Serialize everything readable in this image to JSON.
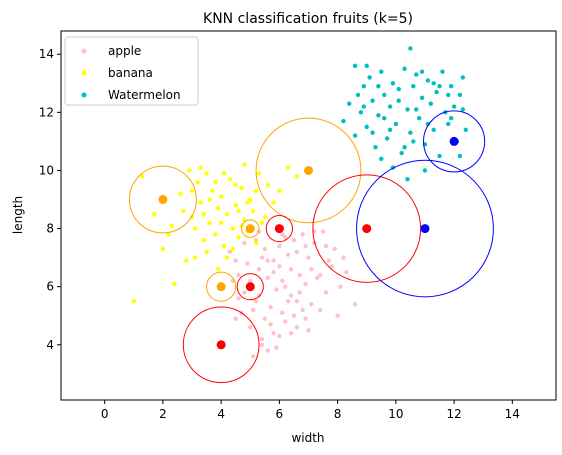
{
  "chart_data": {
    "type": "scatter",
    "title": "KNN classification fruits (k=5)",
    "xlabel": "width",
    "ylabel": "length",
    "xlim": [
      -1.5,
      15.5
    ],
    "ylim": [
      2.1,
      14.8
    ],
    "xticks": [
      0,
      2,
      4,
      6,
      8,
      10,
      12,
      14
    ],
    "yticks": [
      4,
      6,
      8,
      10,
      12,
      14
    ],
    "grid": false,
    "legend_position": "top-left",
    "series": [
      {
        "name": "apple",
        "color": "#ffc0cb",
        "points": [
          [
            4.3,
            7.2
          ],
          [
            4.6,
            6.4
          ],
          [
            4.8,
            5.8
          ],
          [
            5.0,
            6.2
          ],
          [
            5.2,
            7.6
          ],
          [
            5.4,
            7.0
          ],
          [
            5.6,
            6.3
          ],
          [
            5.8,
            6.9
          ],
          [
            6.0,
            7.4
          ],
          [
            6.2,
            7.7
          ],
          [
            6.4,
            6.6
          ],
          [
            6.6,
            7.2
          ],
          [
            6.8,
            7.8
          ],
          [
            7.0,
            7.0
          ],
          [
            7.2,
            7.5
          ],
          [
            7.4,
            6.4
          ],
          [
            7.5,
            7.9
          ],
          [
            7.7,
            6.9
          ],
          [
            7.9,
            7.3
          ],
          [
            8.1,
            6.0
          ],
          [
            5.1,
            5.2
          ],
          [
            5.3,
            5.7
          ],
          [
            5.5,
            4.9
          ],
          [
            5.7,
            5.3
          ],
          [
            5.9,
            5.9
          ],
          [
            6.1,
            6.2
          ],
          [
            6.3,
            5.5
          ],
          [
            6.5,
            5.0
          ],
          [
            6.7,
            5.8
          ],
          [
            6.9,
            6.1
          ],
          [
            7.1,
            5.4
          ],
          [
            7.3,
            6.3
          ],
          [
            6.2,
            4.8
          ],
          [
            6.6,
            4.6
          ],
          [
            5.8,
            4.4
          ],
          [
            5.6,
            3.8
          ],
          [
            5.4,
            4.2
          ],
          [
            4.5,
            4.9
          ],
          [
            4.7,
            5.1
          ],
          [
            6.0,
            4.3
          ],
          [
            4.5,
            6.9
          ],
          [
            4.8,
            7.5
          ],
          [
            5.3,
            6.6
          ],
          [
            5.6,
            6.9
          ],
          [
            6.1,
            5.1
          ],
          [
            6.4,
            5.7
          ],
          [
            6.8,
            5.2
          ],
          [
            7.6,
            5.8
          ],
          [
            7.8,
            6.7
          ],
          [
            8.3,
            6.5
          ],
          [
            8.6,
            5.4
          ],
          [
            8.0,
            5.0
          ],
          [
            6.3,
            7.1
          ],
          [
            6.9,
            4.9
          ],
          [
            5.1,
            3.6
          ],
          [
            5.9,
            3.9
          ],
          [
            7.0,
            4.5
          ],
          [
            4.9,
            6.8
          ],
          [
            5.5,
            7.3
          ],
          [
            6.0,
            6.7
          ],
          [
            6.5,
            7.6
          ],
          [
            7.1,
            6.6
          ],
          [
            7.4,
            5.2
          ],
          [
            6.7,
            6.4
          ],
          [
            5.2,
            5.5
          ],
          [
            4.6,
            5.6
          ],
          [
            5.8,
            6.5
          ],
          [
            6.2,
            6.0
          ],
          [
            6.6,
            5.5
          ],
          [
            7.2,
            7.9
          ],
          [
            5.0,
            4.6
          ],
          [
            5.4,
            4.0
          ],
          [
            6.4,
            4.4
          ],
          [
            5.7,
            4.7
          ],
          [
            6.1,
            7.8
          ],
          [
            5.3,
            7.9
          ],
          [
            7.6,
            7.4
          ],
          [
            8.2,
            7.0
          ],
          [
            4.4,
            6.2
          ],
          [
            6.9,
            7.4
          ]
        ]
      },
      {
        "name": "banana",
        "color": "#ffff00",
        "points": [
          [
            1.0,
            5.5
          ],
          [
            1.3,
            9.8
          ],
          [
            1.7,
            8.5
          ],
          [
            2.0,
            7.3
          ],
          [
            2.3,
            8.1
          ],
          [
            2.6,
            9.2
          ],
          [
            2.9,
            10.0
          ],
          [
            3.0,
            8.4
          ],
          [
            3.1,
            7.0
          ],
          [
            3.2,
            9.6
          ],
          [
            3.3,
            8.9
          ],
          [
            3.4,
            7.6
          ],
          [
            3.5,
            9.9
          ],
          [
            3.6,
            8.2
          ],
          [
            3.7,
            9.3
          ],
          [
            3.8,
            7.8
          ],
          [
            3.9,
            8.7
          ],
          [
            4.0,
            9.1
          ],
          [
            4.1,
            7.4
          ],
          [
            4.2,
            8.5
          ],
          [
            4.3,
            9.7
          ],
          [
            4.4,
            8.0
          ],
          [
            4.5,
            8.8
          ],
          [
            4.6,
            7.7
          ],
          [
            4.7,
            9.4
          ],
          [
            4.8,
            8.3
          ],
          [
            4.9,
            7.9
          ],
          [
            5.0,
            9.0
          ],
          [
            5.1,
            8.6
          ],
          [
            5.2,
            7.5
          ],
          [
            5.3,
            9.9
          ],
          [
            5.4,
            8.2
          ],
          [
            5.6,
            9.5
          ],
          [
            5.8,
            8.9
          ],
          [
            6.0,
            9.3
          ],
          [
            6.3,
            10.1
          ],
          [
            6.6,
            9.8
          ],
          [
            3.5,
            7.2
          ],
          [
            2.8,
            6.9
          ],
          [
            2.4,
            6.1
          ],
          [
            3.9,
            6.6
          ],
          [
            4.2,
            7.0
          ],
          [
            3.1,
            8.0
          ],
          [
            2.7,
            8.6
          ],
          [
            3.6,
            9.0
          ],
          [
            4.5,
            9.5
          ],
          [
            4.8,
            10.2
          ],
          [
            3.3,
            10.1
          ],
          [
            4.0,
            8.2
          ],
          [
            4.4,
            7.3
          ],
          [
            5.5,
            8.4
          ],
          [
            3.8,
            9.6
          ],
          [
            4.6,
            8.6
          ],
          [
            2.2,
            7.8
          ],
          [
            3.0,
            9.3
          ],
          [
            4.1,
            9.9
          ],
          [
            4.9,
            8.9
          ],
          [
            5.2,
            9.3
          ],
          [
            3.4,
            8.5
          ],
          [
            4.7,
            8.1
          ]
        ]
      },
      {
        "name": "Watermelon",
        "color": "#00bfbf",
        "points": [
          [
            8.2,
            11.7
          ],
          [
            8.4,
            12.3
          ],
          [
            8.6,
            11.2
          ],
          [
            8.6,
            13.6
          ],
          [
            8.8,
            12.0
          ],
          [
            8.9,
            12.9
          ],
          [
            9.0,
            11.5
          ],
          [
            9.1,
            13.2
          ],
          [
            9.2,
            12.4
          ],
          [
            9.3,
            10.8
          ],
          [
            9.4,
            11.9
          ],
          [
            9.5,
            13.4
          ],
          [
            9.6,
            12.6
          ],
          [
            9.7,
            11.1
          ],
          [
            9.8,
            12.2
          ],
          [
            9.9,
            13.0
          ],
          [
            10.0,
            11.6
          ],
          [
            10.1,
            12.8
          ],
          [
            10.2,
            10.6
          ],
          [
            10.3,
            13.5
          ],
          [
            10.4,
            12.1
          ],
          [
            10.5,
            11.3
          ],
          [
            10.6,
            12.9
          ],
          [
            10.7,
            13.3
          ],
          [
            10.8,
            11.8
          ],
          [
            10.9,
            12.5
          ],
          [
            11.0,
            10.9
          ],
          [
            11.1,
            13.1
          ],
          [
            11.2,
            12.3
          ],
          [
            11.3,
            11.4
          ],
          [
            11.4,
            12.7
          ],
          [
            11.5,
            10.5
          ],
          [
            11.6,
            13.4
          ],
          [
            11.7,
            12.0
          ],
          [
            11.8,
            11.6
          ],
          [
            11.9,
            12.9
          ],
          [
            12.0,
            12.2
          ],
          [
            12.1,
            11.0
          ],
          [
            12.2,
            12.6
          ],
          [
            12.3,
            13.2
          ],
          [
            9.5,
            10.4
          ],
          [
            9.9,
            10.1
          ],
          [
            10.4,
            9.7
          ],
          [
            11.0,
            10.0
          ],
          [
            12.4,
            11.4
          ],
          [
            10.5,
            14.2
          ],
          [
            9.0,
            13.6
          ],
          [
            8.7,
            12.6
          ],
          [
            9.8,
            11.4
          ],
          [
            10.6,
            11.0
          ],
          [
            11.3,
            13.0
          ],
          [
            11.9,
            11.8
          ],
          [
            9.4,
            12.9
          ],
          [
            10.9,
            13.4
          ],
          [
            12.2,
            10.5
          ],
          [
            9.6,
            11.8
          ],
          [
            10.1,
            12.4
          ],
          [
            11.5,
            12.9
          ],
          [
            10.3,
            10.8
          ],
          [
            11.1,
            11.6
          ],
          [
            9.2,
            11.3
          ],
          [
            8.9,
            12.2
          ],
          [
            10.7,
            12.1
          ],
          [
            11.8,
            12.6
          ],
          [
            12.3,
            12.1
          ]
        ]
      }
    ],
    "test_points": [
      {
        "x": 2,
        "y": 9,
        "color": "#ffa500",
        "radius": 1.15
      },
      {
        "x": 7,
        "y": 10,
        "color": "#ffa500",
        "radius": 1.8
      },
      {
        "x": 4,
        "y": 6,
        "color": "#ffa500",
        "radius": 0.5
      },
      {
        "x": 5,
        "y": 8,
        "color": "#ffa500",
        "radius": 0.3
      },
      {
        "x": 4,
        "y": 4,
        "color": "#ff0000",
        "radius": 1.3
      },
      {
        "x": 5,
        "y": 6,
        "color": "#ff0000",
        "radius": 0.45
      },
      {
        "x": 6,
        "y": 8,
        "color": "#ff0000",
        "radius": 0.45
      },
      {
        "x": 9,
        "y": 8,
        "color": "#ff0000",
        "radius": 1.85
      },
      {
        "x": 11,
        "y": 8,
        "color": "#0000ff",
        "radius": 2.35
      },
      {
        "x": 12,
        "y": 11,
        "color": "#0000ff",
        "radius": 1.05
      }
    ]
  }
}
